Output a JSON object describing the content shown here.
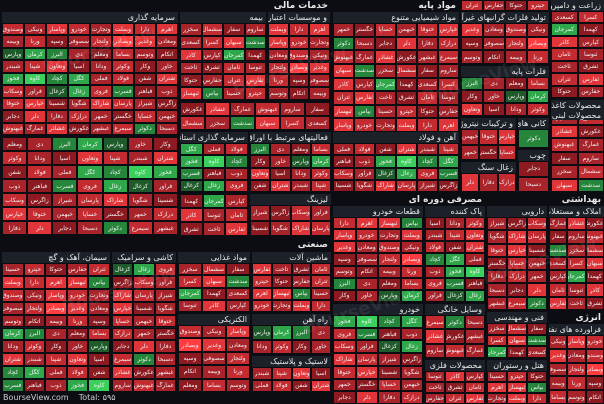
{
  "brand": "BourseView.com",
  "total_label": "Total: ۵۹۵",
  "watermark": "BourseView",
  "colors": {
    "r1": "#6e1218",
    "r2": "#8d1a20",
    "r3": "#a8232a",
    "r4": "#c42b31",
    "r5": "#e2353a",
    "r6": "#ff3d40",
    "g1": "#1f5a2a",
    "g2": "#25853a",
    "g3": "#2ea84a",
    "g4": "#3ad05c",
    "n": "#2a3342"
  },
  "sectors": [
    {
      "id": "khadamat",
      "title": "خدمات مالی"
    },
    {
      "id": "sarmaye",
      "title": "سرمایه گذاری"
    },
    {
      "id": "bime",
      "title": "بیمه"
    },
    {
      "id": "etebari",
      "title": "و موسسات اعتباری"
    },
    {
      "id": "varzesh",
      "title": "فعالیتهای مرتبط با اوراق بهادار"
    },
    {
      "id": "sarmaye2",
      "title": "سرمایه گذاری استانی"
    },
    {
      "id": "leasing",
      "title": "لیزینگ"
    },
    {
      "id": "mavad",
      "title": "مواد پایه"
    },
    {
      "id": "shimiai",
      "title": "مواد شیمیایی متنوع"
    },
    {
      "id": "felezat",
      "title": "تولید فلزات گرانبهای غیرآهن"
    },
    {
      "id": "gharani",
      "title": "فلزات پایه"
    },
    {
      "id": "ahan",
      "title": "آهن و فولاد"
    },
    {
      "id": "tarkib",
      "title": "و ترکیبات نیتروژن"
    },
    {
      "id": "zoghal",
      "title": "زغال سنگ"
    },
    {
      "id": "chub",
      "title": "چوب"
    },
    {
      "id": "felezi",
      "title": "کانی های فلزی"
    },
    {
      "id": "farabari",
      "title": "محصولات کاغذی"
    },
    {
      "id": "zaraat",
      "title": "زراعت و دامپروری"
    },
    {
      "id": "mahsulat",
      "title": "محصولات لبنی"
    },
    {
      "id": "masraf",
      "title": "مصرفی دوره ای"
    },
    {
      "id": "khodro",
      "title": "قطعات خودرو"
    },
    {
      "id": "pak",
      "title": "پاک کننده"
    },
    {
      "id": "bahdasht",
      "title": "بهداشتی"
    },
    {
      "id": "daru",
      "title": "دارویی"
    },
    {
      "id": "amlak",
      "title": "املاک و مستغلات"
    },
    {
      "id": "sanat",
      "title": "صنعتی"
    },
    {
      "id": "siman",
      "title": "سیمان، آهک و گچ"
    },
    {
      "id": "kashi",
      "title": "کاشی و سرامیک"
    },
    {
      "id": "ghaza",
      "title": "مواد غذایی"
    },
    {
      "id": "mashin",
      "title": "ماشین آلات"
    },
    {
      "id": "electric",
      "title": "الکتریکی"
    },
    {
      "id": "rah",
      "title": "راه آهن"
    },
    {
      "id": "rubber",
      "title": "لاستیک و پلاستیک"
    },
    {
      "id": "khodro2",
      "title": "خودرو"
    },
    {
      "id": "vasayel",
      "title": "وسایل خانگی"
    },
    {
      "id": "fani",
      "title": "فنی و مهندسی"
    },
    {
      "id": "mahsul2",
      "title": "محصولات فلزی"
    },
    {
      "id": "hotel",
      "title": "هتل و رستوران"
    },
    {
      "id": "energy",
      "title": "انرژی"
    },
    {
      "id": "faravarde",
      "title": "فراورده های نفتی"
    }
  ],
  "tiles": [
    [
      "اهرم",
      "r5"
    ],
    [
      "دارا",
      "r4"
    ],
    [
      "وبملت",
      "r5"
    ],
    [
      "وتجارت",
      "r3"
    ],
    [
      "خودرو",
      "r4"
    ],
    [
      "وپاسار",
      "r5"
    ],
    [
      "ونیکی",
      "r3"
    ],
    [
      "وصندوق",
      "r4"
    ],
    [
      "ومعادن",
      "r3"
    ],
    [
      "وغدیر",
      "r5"
    ],
    [
      "وبصادر",
      "r6"
    ],
    [
      "ولتجار",
      "r4"
    ],
    [
      "سصوفی",
      "r3"
    ],
    [
      "وسپه",
      "r2"
    ],
    [
      "ورنا",
      "r4"
    ],
    [
      "وبیمه",
      "r3"
    ],
    [
      "اتکام",
      "r2"
    ],
    [
      "وتوسم",
      "r3"
    ],
    [
      "بساما",
      "r4"
    ],
    [
      "ومعلم",
      "r2"
    ],
    [
      "دی",
      "r3"
    ],
    [
      "البرز",
      "g2"
    ],
    [
      "کرمان",
      "g3"
    ],
    [
      "وپارس",
      "g1"
    ],
    [
      "خاور",
      "r3"
    ],
    [
      "وکار",
      "r2"
    ],
    [
      "وکوثر",
      "r4"
    ],
    [
      "ودانا",
      "r3"
    ],
    [
      "آسیا",
      "r2"
    ],
    [
      "وتعاون",
      "r5"
    ],
    [
      "شپنا",
      "r4"
    ],
    [
      "شبندر",
      "r3"
    ],
    [
      "شتران",
      "r5"
    ],
    [
      "شفن",
      "r2"
    ],
    [
      "فولاد",
      "r4"
    ],
    [
      "فملی",
      "r3"
    ],
    [
      "کگل",
      "g3"
    ],
    [
      "کچاد",
      "g2"
    ],
    [
      "کاوه",
      "g4"
    ],
    [
      "فخوز",
      "g3"
    ],
    [
      "ذوب",
      "r3"
    ],
    [
      "فباهنر",
      "r2"
    ],
    [
      "فسرب",
      "g2"
    ],
    [
      "فروی",
      "r4"
    ],
    [
      "زغال",
      "g3"
    ],
    [
      "کزغال",
      "g1"
    ],
    [
      "فرآور",
      "r3"
    ],
    [
      "وسکاب",
      "r4"
    ],
    [
      "زاگرس",
      "r2"
    ],
    [
      "شیراز",
      "r3"
    ],
    [
      "پارسان",
      "r4"
    ],
    [
      "شاراک",
      "r5"
    ],
    [
      "شگویا",
      "r3"
    ],
    [
      "شسینا",
      "r2"
    ],
    [
      "خپارس",
      "r5"
    ],
    [
      "ختوقا",
      "r4"
    ],
    [
      "خبهمن",
      "r3"
    ],
    [
      "خساپا",
      "r4"
    ],
    [
      "خگستر",
      "r2"
    ],
    [
      "خمهر",
      "r3"
    ],
    [
      "درازک",
      "r4"
    ],
    [
      "دفارا",
      "r3"
    ],
    [
      "دلر",
      "r5"
    ],
    [
      "دجابر",
      "r2"
    ],
    [
      "دسبحا",
      "r3"
    ],
    [
      "دکوثر",
      "g2"
    ],
    [
      "سیمرغ",
      "r4"
    ],
    [
      "غبشهر",
      "r3"
    ],
    [
      "غکورش",
      "r2"
    ],
    [
      "غشاذر",
      "r5"
    ],
    [
      "غمارگ",
      "r3"
    ],
    [
      "غبهنوش",
      "r4"
    ],
    [
      "ساروم",
      "r3"
    ],
    [
      "سفار",
      "r2"
    ],
    [
      "سشمال",
      "r4"
    ],
    [
      "سخزر",
      "r3"
    ],
    [
      "سدشت",
      "g2"
    ],
    [
      "سبهان",
      "r5"
    ],
    [
      "کسرا",
      "r4"
    ],
    [
      "کسعدی",
      "r3"
    ],
    [
      "کهمدا",
      "r2"
    ],
    [
      "کمرجان",
      "g3"
    ],
    [
      "کپارس",
      "r3"
    ],
    [
      "کاذر",
      "r5"
    ],
    [
      "ثنوسا",
      "r3"
    ],
    [
      "ثامان",
      "r4"
    ],
    [
      "ثشرق",
      "r2"
    ],
    [
      "ثاخت",
      "r3"
    ],
    [
      "ثفارس",
      "r5"
    ],
    [
      "ثتران",
      "r4"
    ],
    [
      "حفارس",
      "r3"
    ],
    [
      "حتوکا",
      "r2"
    ],
    [
      "حپترو",
      "r4"
    ],
    [
      "حسینا",
      "r3"
    ],
    [
      "بپاس",
      "g2"
    ],
    [
      "ثبهساز",
      "r5"
    ]
  ]
}
